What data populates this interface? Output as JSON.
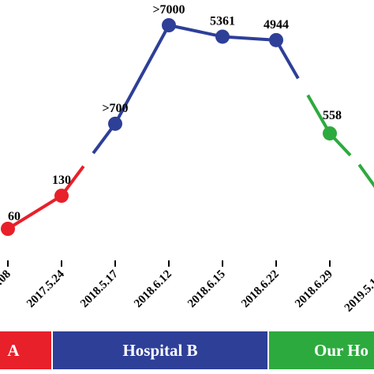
{
  "chart_data": {
    "type": "line",
    "title": "",
    "xlabel": "",
    "ylabel": "",
    "categories": [
      "…08",
      "2017.5.24",
      "2018.5.17",
      "2018.6.12",
      "2018.6.15",
      "2018.6.22",
      "2018.6.29",
      "2019.5.1…"
    ],
    "points": [
      {
        "label": "60",
        "value": 60,
        "segment": 0
      },
      {
        "label": "130",
        "value": 130,
        "segment": 0
      },
      {
        "label": ">700",
        "value": 700,
        "segment": 1
      },
      {
        "label": ">7000",
        "value": 7000,
        "segment": 1
      },
      {
        "label": "5361",
        "value": 5361,
        "segment": 1
      },
      {
        "label": "4944",
        "value": 4944,
        "segment": 1
      },
      {
        "label": "558",
        "value": 558,
        "segment": 2
      }
    ],
    "series_colors": [
      "#e8202a",
      "#2e3f98",
      "#2daa3e"
    ],
    "grid": false,
    "legend": "none"
  },
  "bands": [
    {
      "label": "A",
      "color": "#e8202a"
    },
    {
      "label": "Hospital B",
      "color": "#2e3f98"
    },
    {
      "label": "Our Ho",
      "color": "#2daa3e"
    }
  ]
}
